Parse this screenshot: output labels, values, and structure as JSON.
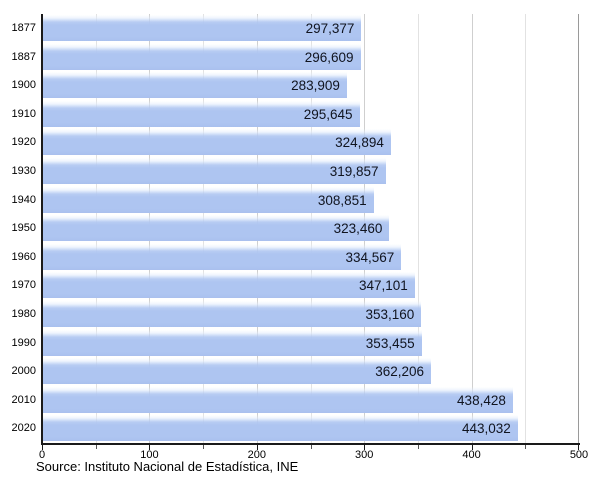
{
  "chart_data": {
    "type": "bar",
    "orientation": "horizontal",
    "title": "",
    "xlabel": "",
    "ylabel": "",
    "categories": [
      "1877",
      "1887",
      "1900",
      "1910",
      "1920",
      "1930",
      "1940",
      "1950",
      "1960",
      "1970",
      "1980",
      "1990",
      "2000",
      "2010",
      "2020"
    ],
    "values": [
      297377,
      296609,
      283909,
      295645,
      324894,
      319857,
      308851,
      323460,
      334567,
      347101,
      353160,
      353455,
      362206,
      438428,
      443032
    ],
    "value_labels": [
      "297,377",
      "296,609",
      "283,909",
      "295,645",
      "324,894",
      "319,857",
      "308,851",
      "323,460",
      "334,567",
      "347,101",
      "353,160",
      "353,455",
      "362,206",
      "438,428",
      "443,032"
    ],
    "x_axis": {
      "major_ticks": [
        0,
        100,
        200,
        300,
        400,
        500
      ],
      "major_tick_labels": [
        "0",
        "100",
        "200",
        "300",
        "400",
        "500"
      ],
      "minor_ticks": [
        50,
        150,
        250,
        350,
        450
      ],
      "min": 0,
      "max": 500,
      "value_divisor": 1000
    },
    "legend": null,
    "grid": true,
    "bar_color": "#aec5f1",
    "value_text_color": "#10141f"
  },
  "source": "Source: Instituto Nacional de Estadística, INE"
}
